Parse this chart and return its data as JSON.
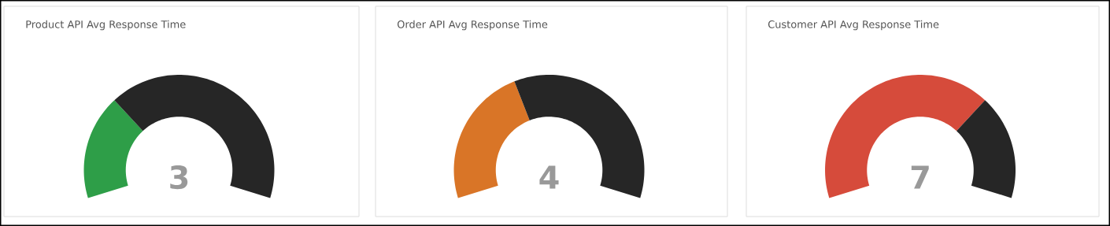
{
  "chart_data": [
    {
      "type": "donut",
      "title": "Product API Avg Response Time",
      "categories": [
        null,
        null
      ],
      "values": [
        30,
        70
      ],
      "colors": [
        "#2e9e48",
        "#262626"
      ],
      "annotations": [
        "3"
      ]
    },
    {
      "type": "donut",
      "title": "Order API Avg Response Time",
      "categories": [
        null,
        null
      ],
      "values": [
        40,
        60
      ],
      "colors": [
        "#d97527",
        "#262626"
      ],
      "annotations": [
        "4"
      ]
    },
    {
      "type": "donut",
      "title": "Customer API Avg Response Time",
      "categories": [
        null,
        null
      ],
      "values": [
        70,
        30
      ],
      "colors": [
        "#d64b3b",
        "#262626"
      ],
      "annotations": [
        "7"
      ]
    }
  ]
}
